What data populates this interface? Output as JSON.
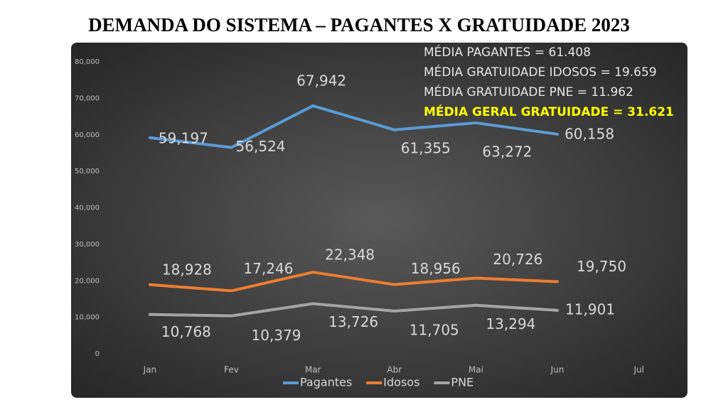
{
  "chart_data": {
    "type": "line",
    "title": "DEMANDA DO SISTEMA – PAGANTES X GRATUIDADE 2023",
    "annotations": [
      "MÉDIA PAGANTES = 61.408",
      "MÉDIA GRATUIDADE IDOSOS = 19.659",
      "MÉDIA GRATUIDADE PNE = 11.962",
      "MÉDIA GERAL GRATUIDADE = 31.621"
    ],
    "categories": [
      "Jan",
      "Fev",
      "Mar",
      "Abr",
      "Mai",
      "Jun",
      "Jul"
    ],
    "series": [
      {
        "name": "Pagantes",
        "color": "#5b9bd5",
        "values": [
          59197,
          56524,
          67942,
          61355,
          63272,
          60158,
          null
        ],
        "value_labels": [
          "59,197",
          "56,524",
          "67,942",
          "61,355",
          "63,272",
          "60,158",
          null
        ]
      },
      {
        "name": "Idosos",
        "color": "#ed7d31",
        "values": [
          18928,
          17246,
          22348,
          18956,
          20726,
          19750,
          null
        ],
        "value_labels": [
          "18,928",
          "17,246",
          "22,348",
          "18,956",
          "20,726",
          "19,750",
          null
        ]
      },
      {
        "name": "PNE",
        "color": "#a5a5a5",
        "values": [
          10768,
          10379,
          13726,
          11705,
          13294,
          11901,
          null
        ],
        "value_labels": [
          "10,768",
          "10,379",
          "13,726",
          "11,705",
          "13,294",
          "11,901",
          null
        ]
      }
    ],
    "ylim": [
      0,
      80000
    ],
    "yticks": [
      0,
      {
        "value": 10000,
        "label": "10,000"
      },
      {
        "value": 20000,
        "label": "20,000"
      },
      {
        "value": 30000,
        "label": "30,000"
      },
      {
        "value": 40000,
        "label": "40,000"
      },
      {
        "value": 50000,
        "label": "50,000"
      },
      {
        "value": 60000,
        "label": "60,000"
      },
      {
        "value": 70000,
        "label": "70,000"
      },
      {
        "value": 80000,
        "label": "80,000"
      }
    ],
    "grid": false,
    "legend": "bottom"
  }
}
